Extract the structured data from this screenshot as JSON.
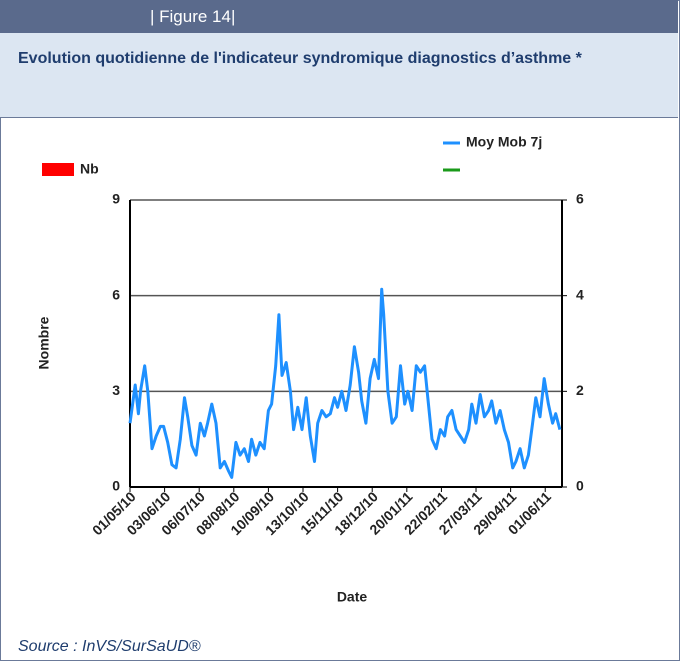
{
  "header": "| Figure 14|",
  "source": "Source : InVS/SurSaUD®",
  "chart_data": {
    "type": "line",
    "title": "Evolution quotidienne de l'indicateur syndromique diagnostics d’asthme *",
    "x_label": "Date",
    "y_label": "Nombre",
    "legend": [
      {
        "name": "Nb",
        "color": "#ff0000"
      }
    ],
    "x": [
      0,
      5,
      8,
      10,
      14,
      17,
      21,
      25,
      29,
      32,
      36,
      40,
      44,
      48,
      52,
      55,
      59,
      63,
      67,
      71,
      74,
      78,
      82,
      86,
      90,
      94,
      97,
      101,
      105,
      109,
      113,
      116,
      120,
      124,
      128,
      132,
      135,
      139,
      142,
      145,
      149,
      153,
      156,
      160,
      164,
      168,
      172,
      176,
      179,
      183,
      187,
      191,
      195,
      198,
      202,
      206,
      210,
      214,
      218,
      221,
      225,
      229,
      233,
      237,
      240,
      242,
      246,
      250,
      254,
      258,
      262,
      265,
      269,
      273,
      277,
      281,
      284,
      288,
      292,
      296,
      300,
      303,
      307,
      311,
      315,
      319,
      323,
      326,
      330,
      334,
      338,
      342,
      345,
      349,
      353,
      357,
      361,
      365,
      368,
      372,
      376,
      380,
      384,
      387,
      391,
      395,
      399,
      403,
      406,
      410
    ],
    "series": [
      {
        "name": "Moy Mob 7j",
        "color": "#1e90ff",
        "values": [
          2.0,
          3.2,
          2.3,
          3.0,
          3.8,
          3.0,
          1.2,
          1.6,
          1.9,
          1.9,
          1.4,
          0.7,
          0.6,
          1.5,
          2.8,
          2.2,
          1.3,
          1.0,
          2.0,
          1.6,
          2.0,
          2.6,
          2.0,
          0.6,
          0.8,
          0.5,
          0.3,
          1.4,
          1.0,
          1.2,
          0.8,
          1.5,
          1.0,
          1.4,
          1.2,
          2.4,
          2.6,
          3.8,
          5.4,
          3.5,
          3.9,
          3.0,
          1.8,
          2.5,
          1.8,
          2.8,
          1.6,
          0.8,
          2.0,
          2.4,
          2.2,
          2.3,
          2.8,
          2.5,
          3.0,
          2.4,
          3.2,
          4.4,
          3.6,
          2.7,
          2.0,
          3.4,
          4.0,
          3.4,
          6.2,
          5.4,
          3.0,
          2.0,
          2.2,
          3.8,
          2.6,
          3.0,
          2.4,
          3.8,
          3.6,
          3.8,
          2.8,
          1.5,
          1.2,
          1.8,
          1.6,
          2.2,
          2.4,
          1.8,
          1.6,
          1.4,
          1.8,
          2.6,
          2.0,
          2.9,
          2.2,
          2.4,
          2.7,
          2.0,
          2.4,
          1.8,
          1.4,
          0.6,
          0.8,
          1.2,
          0.6,
          1.0,
          2.0,
          2.8,
          2.2,
          3.4,
          2.6,
          2.0,
          2.3,
          1.8
        ]
      }
    ],
    "xlim": [
      0,
      412
    ],
    "xticks": [
      {
        "value": 0,
        "label": "01/05/10"
      },
      {
        "value": 33,
        "label": "03/06/10"
      },
      {
        "value": 66,
        "label": "06/07/10"
      },
      {
        "value": 99,
        "label": "08/08/10"
      },
      {
        "value": 132,
        "label": "10/09/10"
      },
      {
        "value": 165,
        "label": "13/10/10"
      },
      {
        "value": 198,
        "label": "15/11/10"
      },
      {
        "value": 231,
        "label": "18/12/10"
      },
      {
        "value": 264,
        "label": "20/01/11"
      },
      {
        "value": 297,
        "label": "22/02/11"
      },
      {
        "value": 330,
        "label": "27/03/11"
      },
      {
        "value": 363,
        "label": "29/04/11"
      },
      {
        "value": 396,
        "label": "01/06/11"
      }
    ],
    "ylim": [
      0,
      9
    ],
    "yticks": [
      0,
      3,
      6,
      9
    ],
    "y2lim": [
      0,
      6
    ],
    "y2ticks": [
      0,
      2,
      4,
      6
    ],
    "grid": true
  }
}
